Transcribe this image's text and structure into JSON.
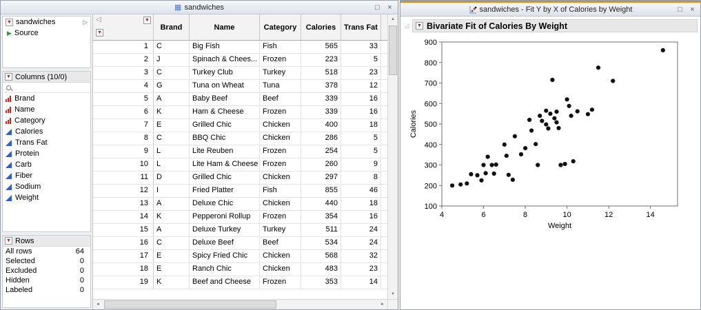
{
  "icons": {
    "red_triangle": "▼",
    "expand_arrow": "▷",
    "source_play": "▶",
    "collapse_left": "◁",
    "maximize": "□",
    "close": "×",
    "disclosure": "◿",
    "up_arrow": "▲",
    "down_arrow": "▼",
    "left_arrow": "◄",
    "right_arrow": "►",
    "table_glyph": "▦"
  },
  "left_window": {
    "title": "sandwiches",
    "table_panel": {
      "title": "sandwiches",
      "source_label": "Source"
    },
    "columns_panel": {
      "title": "Columns (10/0)",
      "items": [
        {
          "label": "Brand",
          "type": "nominal"
        },
        {
          "label": "Name",
          "type": "nominal"
        },
        {
          "label": "Category",
          "type": "nominal"
        },
        {
          "label": "Calories",
          "type": "continuous"
        },
        {
          "label": "Trans Fat",
          "type": "continuous"
        },
        {
          "label": "Protein",
          "type": "continuous"
        },
        {
          "label": "Carb",
          "type": "continuous"
        },
        {
          "label": "Fiber",
          "type": "continuous"
        },
        {
          "label": "Sodium",
          "type": "continuous"
        },
        {
          "label": "Weight",
          "type": "continuous"
        }
      ]
    },
    "rows_panel": {
      "title": "Rows",
      "stats": [
        {
          "label": "All rows",
          "value": "64"
        },
        {
          "label": "Selected",
          "value": "0"
        },
        {
          "label": "Excluded",
          "value": "0"
        },
        {
          "label": "Hidden",
          "value": "0"
        },
        {
          "label": "Labeled",
          "value": "0"
        }
      ]
    },
    "grid": {
      "headers": [
        "Brand",
        "Name",
        "Category",
        "Calories",
        "Trans Fat"
      ],
      "rows": [
        {
          "n": "1",
          "cells": [
            "C",
            "Big Fish",
            "Fish",
            "565",
            "33"
          ]
        },
        {
          "n": "2",
          "cells": [
            "J",
            "Spinach & Chees...",
            "Frozen",
            "223",
            "5"
          ]
        },
        {
          "n": "3",
          "cells": [
            "C",
            "Turkey Club",
            "Turkey",
            "518",
            "23"
          ]
        },
        {
          "n": "4",
          "cells": [
            "G",
            "Tuna on Wheat",
            "Tuna",
            "378",
            "12"
          ]
        },
        {
          "n": "5",
          "cells": [
            "A",
            "Baby Beef",
            "Beef",
            "339",
            "16"
          ]
        },
        {
          "n": "6",
          "cells": [
            "K",
            "Ham & Cheese",
            "Frozen",
            "339",
            "16"
          ]
        },
        {
          "n": "7",
          "cells": [
            "E",
            "Grilled Chic",
            "Chicken",
            "400",
            "18"
          ]
        },
        {
          "n": "8",
          "cells": [
            "C",
            "BBQ Chic",
            "Chicken",
            "286",
            "5"
          ]
        },
        {
          "n": "9",
          "cells": [
            "L",
            "Lite Reuben",
            "Frozen",
            "254",
            "5"
          ]
        },
        {
          "n": "10",
          "cells": [
            "L",
            "Lite Ham & Cheese",
            "Frozen",
            "260",
            "9"
          ]
        },
        {
          "n": "11",
          "cells": [
            "D",
            "Grilled Chic",
            "Chicken",
            "297",
            "8"
          ]
        },
        {
          "n": "12",
          "cells": [
            "I",
            "Fried Platter",
            "Fish",
            "855",
            "46"
          ]
        },
        {
          "n": "13",
          "cells": [
            "A",
            "Deluxe Chic",
            "Chicken",
            "440",
            "18"
          ]
        },
        {
          "n": "14",
          "cells": [
            "K",
            "Pepperoni Rollup",
            "Frozen",
            "354",
            "16"
          ]
        },
        {
          "n": "15",
          "cells": [
            "A",
            "Deluxe Turkey",
            "Turkey",
            "511",
            "24"
          ]
        },
        {
          "n": "16",
          "cells": [
            "C",
            "Deluxe Beef",
            "Beef",
            "534",
            "24"
          ]
        },
        {
          "n": "17",
          "cells": [
            "E",
            "Spicy Fried Chic",
            "Chicken",
            "568",
            "32"
          ]
        },
        {
          "n": "18",
          "cells": [
            "E",
            "Ranch Chic",
            "Chicken",
            "483",
            "23"
          ]
        },
        {
          "n": "19",
          "cells": [
            "K",
            "Beef and Cheese",
            "Frozen",
            "353",
            "14"
          ]
        }
      ]
    }
  },
  "right_window": {
    "title": "sandwiches - Fit Y by X of Calories by Weight",
    "report_title": "Bivariate Fit of Calories By Weight"
  },
  "chart_data": {
    "type": "scatter",
    "title": "Bivariate Fit of Calories By Weight",
    "xlabel": "Weight",
    "ylabel": "Calories",
    "xlim": [
      4,
      15.3
    ],
    "ylim": [
      100,
      900
    ],
    "x_ticks": [
      4,
      6,
      8,
      10,
      12,
      14
    ],
    "y_ticks": [
      100,
      200,
      300,
      400,
      500,
      600,
      700,
      800,
      900
    ],
    "grid": false,
    "legend": false,
    "points": [
      [
        4.5,
        200
      ],
      [
        4.9,
        205
      ],
      [
        5.2,
        210
      ],
      [
        5.4,
        255
      ],
      [
        5.7,
        250
      ],
      [
        5.9,
        225
      ],
      [
        6.0,
        300
      ],
      [
        6.1,
        260
      ],
      [
        6.2,
        340
      ],
      [
        6.4,
        300
      ],
      [
        6.5,
        258
      ],
      [
        6.6,
        302
      ],
      [
        7.0,
        400
      ],
      [
        7.1,
        345
      ],
      [
        7.2,
        252
      ],
      [
        7.4,
        228
      ],
      [
        7.5,
        440
      ],
      [
        7.8,
        352
      ],
      [
        8.0,
        382
      ],
      [
        8.2,
        520
      ],
      [
        8.3,
        468
      ],
      [
        8.5,
        402
      ],
      [
        8.6,
        300
      ],
      [
        8.7,
        540
      ],
      [
        8.8,
        515
      ],
      [
        9.0,
        565
      ],
      [
        9.0,
        498
      ],
      [
        9.1,
        478
      ],
      [
        9.2,
        550
      ],
      [
        9.3,
        715
      ],
      [
        9.4,
        528
      ],
      [
        9.5,
        560
      ],
      [
        9.5,
        508
      ],
      [
        9.6,
        480
      ],
      [
        9.7,
        300
      ],
      [
        9.9,
        305
      ],
      [
        10.0,
        620
      ],
      [
        10.1,
        588
      ],
      [
        10.2,
        540
      ],
      [
        10.3,
        318
      ],
      [
        10.5,
        562
      ],
      [
        11.0,
        548
      ],
      [
        11.2,
        570
      ],
      [
        11.5,
        775
      ],
      [
        12.2,
        710
      ],
      [
        14.6,
        860
      ]
    ]
  }
}
